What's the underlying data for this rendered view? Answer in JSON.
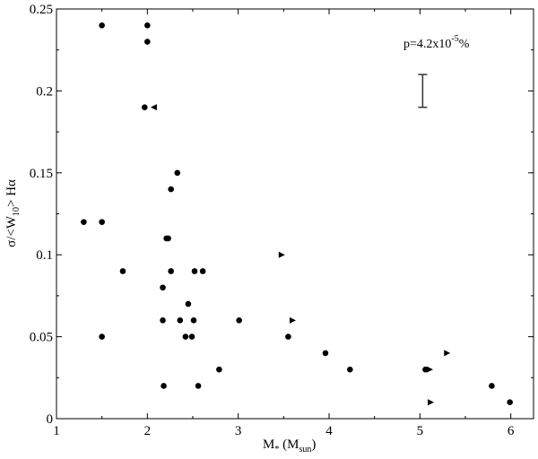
{
  "chart_data": {
    "type": "scatter",
    "title": "",
    "xlabel": {
      "main": "M",
      "sub1": "*",
      "paren_open": " (M",
      "sub2": "sun",
      "paren_close": ")"
    },
    "ylabel": {
      "prefix": "σ/<W",
      "sub": "10",
      "suffix": "> Hα"
    },
    "xlim": [
      1,
      6.25
    ],
    "ylim": [
      0,
      0.25
    ],
    "x_ticks": [
      1,
      2,
      3,
      4,
      5,
      6
    ],
    "x_tick_labels": [
      "1",
      "2",
      "3",
      "4",
      "5",
      "6"
    ],
    "y_ticks": [
      0,
      0.05,
      0.1,
      0.15,
      0.2,
      0.25
    ],
    "y_tick_labels": [
      "0",
      "0.05",
      "0.1",
      "0.15",
      "0.2",
      "0.25"
    ],
    "grid": false,
    "annotation": {
      "base": "p=4.2x10",
      "exponent": "-5",
      "suffix": "%"
    },
    "error_bar": {
      "x": 5.03,
      "y_low": 0.19,
      "y_high": 0.21
    },
    "series": [
      {
        "marker": "circle",
        "points": [
          [
            1.3,
            0.12
          ],
          [
            1.5,
            0.24
          ],
          [
            1.5,
            0.12
          ],
          [
            1.5,
            0.05
          ],
          [
            1.73,
            0.09
          ],
          [
            1.97,
            0.19
          ],
          [
            2.0,
            0.24
          ],
          [
            2.0,
            0.23
          ],
          [
            2.17,
            0.08
          ],
          [
            2.17,
            0.06
          ],
          [
            2.18,
            0.02
          ],
          [
            2.21,
            0.11
          ],
          [
            2.23,
            0.11
          ],
          [
            2.26,
            0.14
          ],
          [
            2.26,
            0.09
          ],
          [
            2.33,
            0.15
          ],
          [
            2.36,
            0.06
          ],
          [
            2.42,
            0.05
          ],
          [
            2.45,
            0.07
          ],
          [
            2.49,
            0.05
          ],
          [
            2.51,
            0.06
          ],
          [
            2.52,
            0.09
          ],
          [
            2.56,
            0.02
          ],
          [
            2.61,
            0.09
          ],
          [
            2.79,
            0.03
          ],
          [
            3.01,
            0.06
          ],
          [
            3.55,
            0.05
          ],
          [
            3.96,
            0.04
          ],
          [
            4.23,
            0.03
          ],
          [
            5.06,
            0.03
          ],
          [
            5.79,
            0.02
          ],
          [
            5.99,
            0.01
          ]
        ]
      },
      {
        "marker": "triangle-left",
        "points": [
          [
            2.07,
            0.19
          ]
        ]
      },
      {
        "marker": "triangle-right",
        "points": [
          [
            3.48,
            0.1
          ],
          [
            3.6,
            0.06
          ],
          [
            5.11,
            0.03
          ],
          [
            5.3,
            0.04
          ],
          [
            5.12,
            0.01
          ]
        ]
      }
    ]
  }
}
